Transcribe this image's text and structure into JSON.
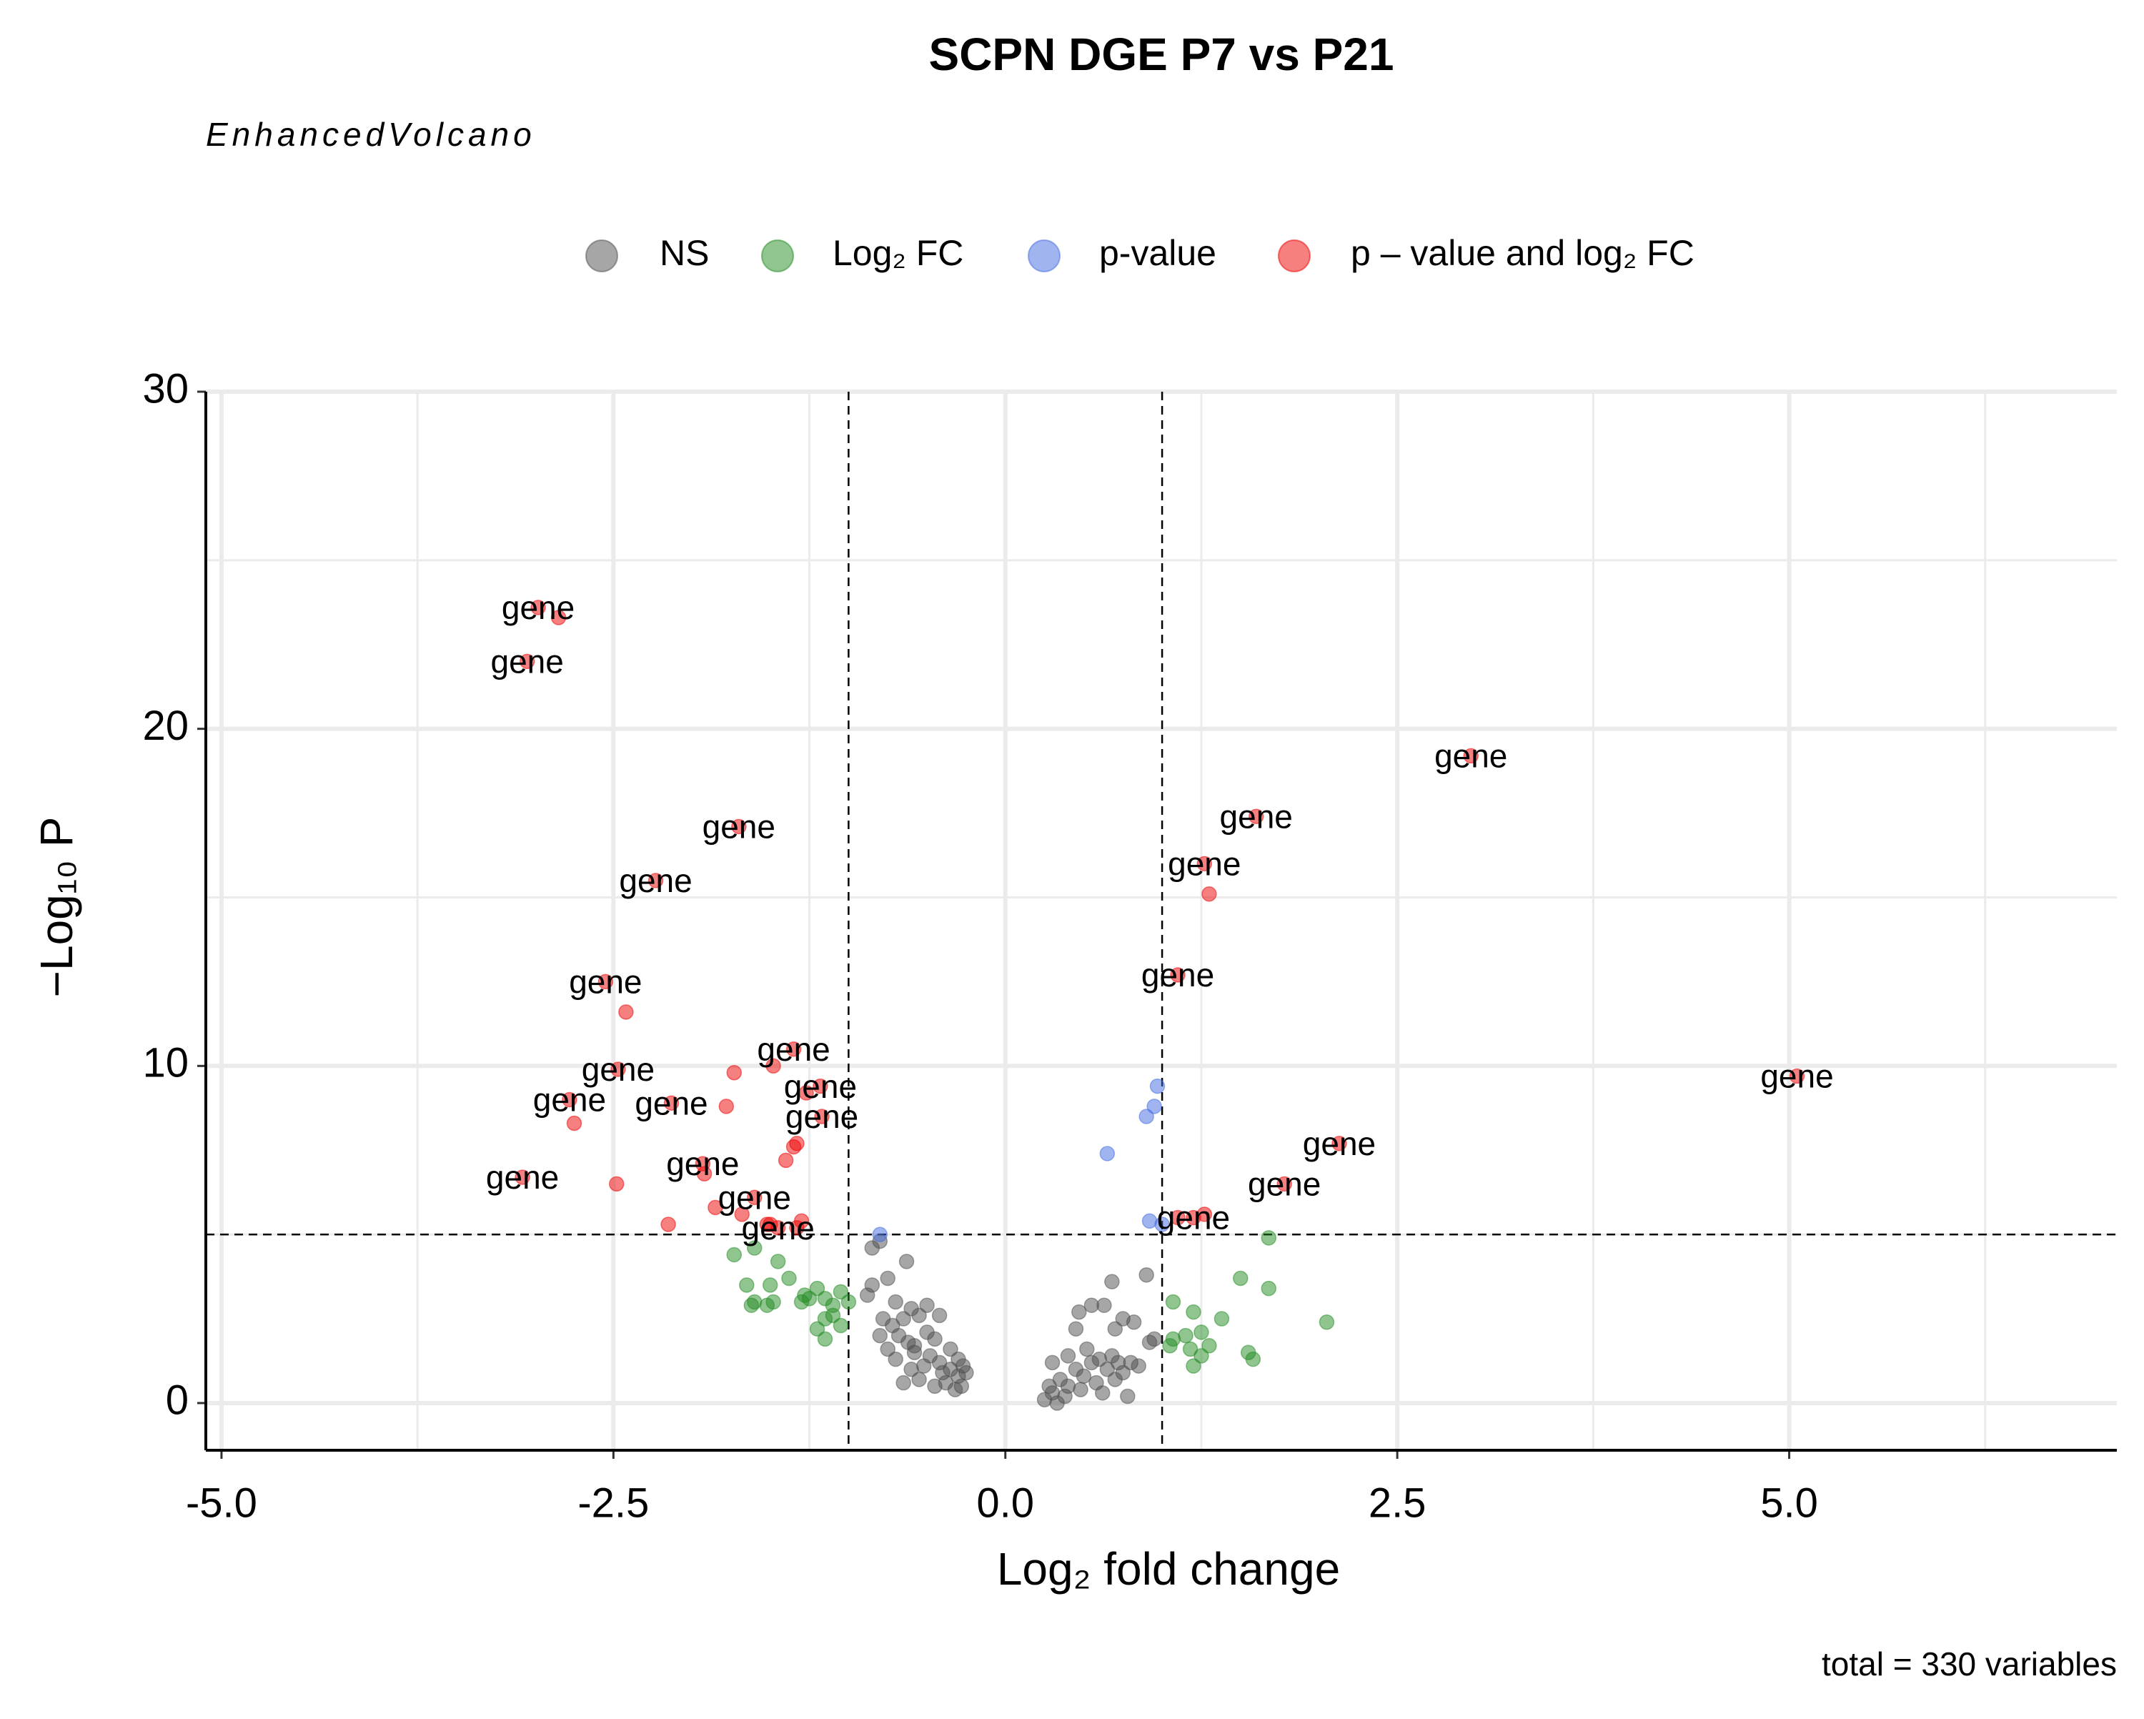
{
  "chart_data": {
    "type": "scatter",
    "title": "SCPN DGE P7 vs P21",
    "subtitle": "EnhancedVolcano",
    "caption": "total = 330 variables",
    "x_label": "Log₂ fold change",
    "y_label": "−Log₁₀ P",
    "xlim": [
      -5.1,
      7.09
    ],
    "ylim": [
      -1.4,
      30
    ],
    "xticks": [
      {
        "value": -5,
        "label": "-5.0"
      },
      {
        "value": -2.5,
        "label": "-2.5"
      },
      {
        "value": 0,
        "label": "0.0"
      },
      {
        "value": 2.5,
        "label": "2.5"
      },
      {
        "value": 5,
        "label": "5.0"
      }
    ],
    "yticks": [
      0,
      10,
      20,
      30
    ],
    "xminor": [
      -3.75,
      -1.25,
      1.25,
      3.75,
      6.25
    ],
    "yminor": [
      5,
      15,
      25
    ],
    "vlines": [
      -1,
      1
    ],
    "hline": 5,
    "grid": true,
    "alpha": 0.5,
    "legend": "top",
    "series": [
      {
        "name": "NS",
        "color": "#4d4d4d",
        "x": [
          -0.85,
          -0.8,
          -0.63,
          -0.75,
          -0.85,
          -0.88,
          -0.7,
          -0.6,
          -0.65,
          -0.55,
          -0.72,
          -0.8,
          -0.68,
          -0.62,
          -0.58,
          -0.5,
          -0.45,
          -0.48,
          -0.52,
          -0.42,
          -0.4,
          -0.35,
          -0.38,
          -0.3,
          -0.32,
          -0.28,
          -0.27,
          -0.6,
          -0.65,
          -0.55,
          -0.45,
          -0.7,
          -0.75,
          -0.78,
          -0.5,
          -0.42,
          -0.35,
          -0.3,
          -0.25,
          -0.58,
          0.25,
          0.3,
          0.28,
          0.33,
          0.38,
          0.4,
          0.35,
          0.3,
          0.45,
          0.48,
          0.5,
          0.55,
          0.58,
          0.6,
          0.62,
          0.65,
          0.68,
          0.7,
          0.72,
          0.75,
          0.78,
          0.8,
          0.82,
          0.75,
          0.68,
          0.9,
          0.63,
          0.55,
          0.47,
          0.92,
          0.95,
          0.85,
          0.4,
          0.52,
          0.7,
          0.45
        ],
        "values": [
          4.6,
          4.8,
          4.2,
          3.7,
          3.5,
          3.2,
          3.0,
          2.8,
          2.5,
          2.6,
          2.3,
          2.0,
          2.0,
          1.8,
          1.5,
          2.1,
          1.9,
          1.4,
          1.1,
          1.2,
          0.9,
          1.0,
          0.6,
          0.8,
          0.4,
          0.5,
          1.1,
          1.0,
          0.6,
          0.7,
          0.5,
          1.3,
          1.6,
          2.5,
          2.9,
          2.6,
          1.6,
          1.3,
          0.9,
          1.7,
          0.1,
          0.3,
          0.5,
          0.0,
          0.2,
          0.5,
          0.7,
          1.2,
          1.0,
          0.4,
          0.8,
          1.2,
          0.6,
          1.3,
          0.3,
          1.0,
          1.4,
          0.7,
          1.2,
          0.9,
          0.2,
          1.2,
          2.4,
          2.5,
          3.6,
          3.8,
          2.9,
          2.9,
          2.7,
          1.8,
          1.9,
          1.1,
          1.4,
          1.6,
          2.2,
          2.2
        ]
      },
      {
        "name": "Log₂ FC",
        "color": "#228b22",
        "x": [
          -1.73,
          -1.6,
          -1.45,
          -1.38,
          -1.5,
          -1.65,
          -1.2,
          -1.28,
          -1.15,
          -1.05,
          -1.1,
          -1.3,
          -1.48,
          -1.6,
          -1.52,
          -1.0,
          -1.15,
          -1.1,
          -1.2,
          -1.15,
          -1.05,
          -1.62,
          -1.25,
          1.68,
          1.5,
          1.68,
          1.07,
          1.2,
          1.38,
          2.05,
          1.25,
          1.15,
          1.07,
          1.3,
          1.18,
          1.55,
          1.58,
          1.2,
          1.05,
          1.25
        ],
        "values": [
          4.4,
          4.6,
          4.2,
          3.7,
          3.5,
          3.5,
          3.4,
          3.2,
          3.1,
          3.3,
          2.9,
          3.0,
          3.0,
          3.0,
          2.9,
          3.0,
          2.5,
          2.6,
          2.2,
          1.9,
          2.3,
          2.9,
          3.1,
          4.9,
          3.7,
          3.4,
          3.0,
          2.7,
          2.5,
          2.4,
          2.1,
          2.0,
          1.9,
          1.7,
          1.6,
          1.5,
          1.3,
          1.1,
          1.7,
          1.4
        ]
      },
      {
        "name": "p-value",
        "color": "#4169e1",
        "x": [
          -0.8,
          0.97,
          0.95,
          0.9,
          0.65,
          0.92,
          1.0
        ],
        "values": [
          5.0,
          9.4,
          8.8,
          8.5,
          7.4,
          5.4,
          5.3
        ]
      },
      {
        "name": "p – value and log₂ FC",
        "color": "#ee0000",
        "x": [
          -2.98,
          -2.85,
          -3.05,
          -1.7,
          -2.23,
          -2.55,
          -2.42,
          -1.35,
          -1.48,
          -2.47,
          -1.73,
          -1.18,
          -1.27,
          -2.78,
          -2.13,
          -1.78,
          -1.17,
          -2.75,
          -1.33,
          -1.35,
          -1.4,
          -1.93,
          -1.92,
          -3.08,
          -2.48,
          -1.6,
          -1.85,
          -1.68,
          -1.3,
          -1.5,
          -2.15,
          -1.45,
          -1.33,
          -1.52,
          2.97,
          1.6,
          1.27,
          1.3,
          1.1,
          5.05,
          2.13,
          1.78,
          1.27,
          1.2,
          1.1
        ],
        "values": [
          23.6,
          23.3,
          22.0,
          17.1,
          15.5,
          12.5,
          11.6,
          10.5,
          10.0,
          9.9,
          9.8,
          9.4,
          9.2,
          9.0,
          8.9,
          8.8,
          8.5,
          8.3,
          7.7,
          7.6,
          7.2,
          7.1,
          6.8,
          6.7,
          6.5,
          6.1,
          5.8,
          5.6,
          5.4,
          5.3,
          5.3,
          5.2,
          5.2,
          5.3,
          19.2,
          17.4,
          16.0,
          15.1,
          12.7,
          9.7,
          7.7,
          6.5,
          5.6,
          5.5,
          5.5
        ],
        "labels": [
          "gene",
          null,
          "gene",
          "gene",
          "gene",
          "gene",
          null,
          "gene",
          null,
          "gene",
          null,
          "gene",
          null,
          "gene",
          "gene",
          null,
          "gene",
          null,
          null,
          null,
          null,
          "gene",
          null,
          "gene",
          null,
          "gene",
          null,
          null,
          null,
          null,
          null,
          "gene",
          null,
          null,
          "gene",
          "gene",
          "gene",
          null,
          "gene",
          "gene",
          "gene",
          "gene",
          null,
          "gene",
          null
        ]
      }
    ]
  }
}
